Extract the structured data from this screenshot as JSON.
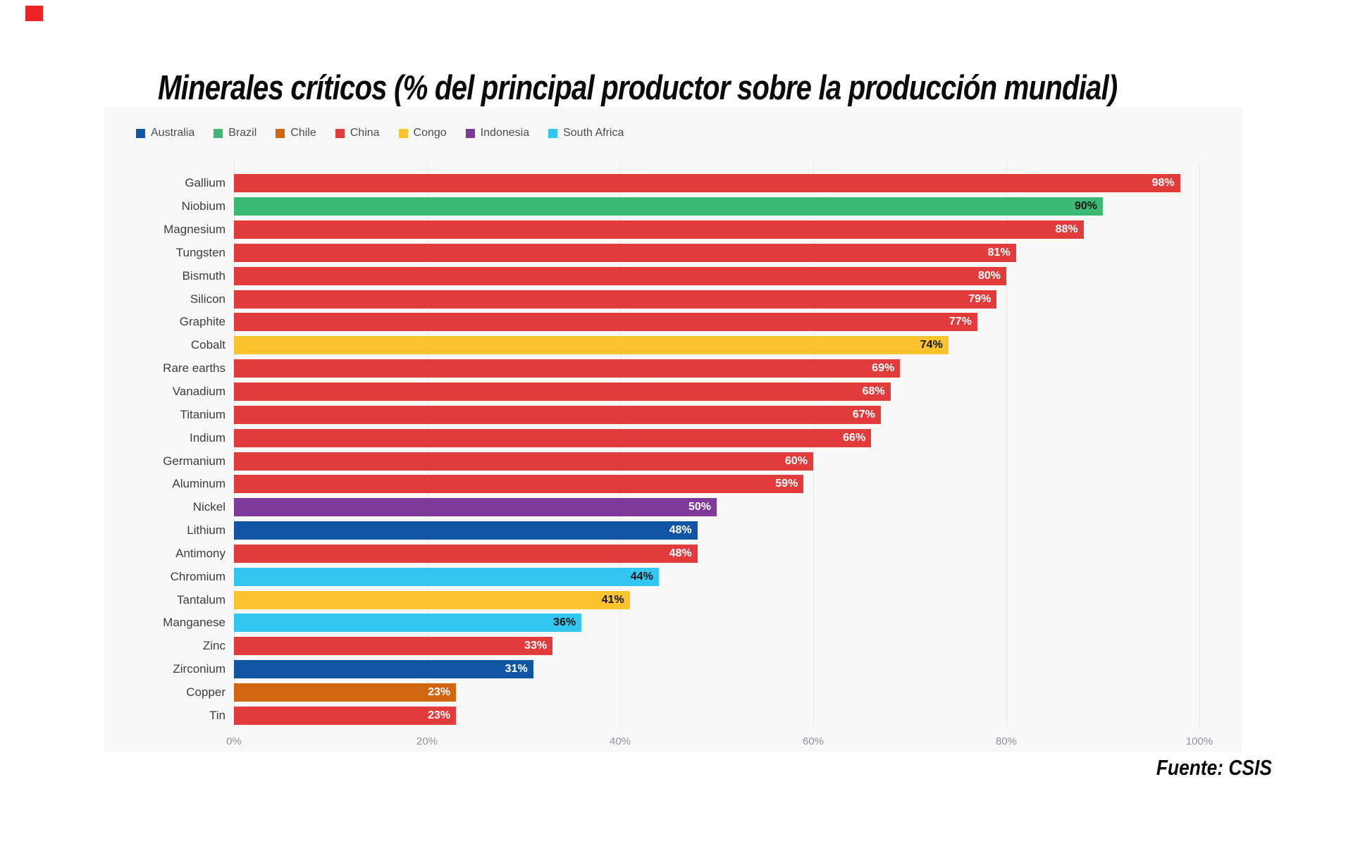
{
  "decoration": {
    "corner_square_color": "#ec2227"
  },
  "title": "Minerales críticos (% del principal productor sobre la producción mundial)",
  "source": "Fuente: CSIS",
  "chart_data": {
    "type": "bar",
    "orientation": "horizontal",
    "title": "Minerales críticos (% del principal productor sobre la producción mundial)",
    "legend_position": "top",
    "grid": true,
    "x_axis": {
      "min": 0,
      "max": 100,
      "ticks": [
        "0%",
        "20%",
        "40%",
        "60%",
        "80%",
        "100%"
      ],
      "tick_values": [
        0,
        20,
        40,
        60,
        80,
        100
      ]
    },
    "countries": [
      {
        "name": "Australia",
        "color": "#1156a5"
      },
      {
        "name": "Brazil",
        "color": "#3cba73"
      },
      {
        "name": "Chile",
        "color": "#d2650f"
      },
      {
        "name": "China",
        "color": "#e23b3c"
      },
      {
        "name": "Congo",
        "color": "#fbc32d"
      },
      {
        "name": "Indonesia",
        "color": "#7d3a9b"
      },
      {
        "name": "South Africa",
        "color": "#33c6f0"
      }
    ],
    "bars": [
      {
        "mineral": "Gallium",
        "producer": "China",
        "value": 98,
        "label": "98%",
        "label_color": "#ffffff"
      },
      {
        "mineral": "Niobium",
        "producer": "Brazil",
        "value": 90,
        "label": "90%",
        "label_color": "#161616"
      },
      {
        "mineral": "Magnesium",
        "producer": "China",
        "value": 88,
        "label": "88%",
        "label_color": "#ffffff"
      },
      {
        "mineral": "Tungsten",
        "producer": "China",
        "value": 81,
        "label": "81%",
        "label_color": "#ffffff"
      },
      {
        "mineral": "Bismuth",
        "producer": "China",
        "value": 80,
        "label": "80%",
        "label_color": "#ffffff"
      },
      {
        "mineral": "Silicon",
        "producer": "China",
        "value": 79,
        "label": "79%",
        "label_color": "#ffffff"
      },
      {
        "mineral": "Graphite",
        "producer": "China",
        "value": 77,
        "label": "77%",
        "label_color": "#ffffff"
      },
      {
        "mineral": "Cobalt",
        "producer": "Congo",
        "value": 74,
        "label": "74%",
        "label_color": "#161616"
      },
      {
        "mineral": "Rare earths",
        "producer": "China",
        "value": 69,
        "label": "69%",
        "label_color": "#ffffff"
      },
      {
        "mineral": "Vanadium",
        "producer": "China",
        "value": 68,
        "label": "68%",
        "label_color": "#ffffff"
      },
      {
        "mineral": "Titanium",
        "producer": "China",
        "value": 67,
        "label": "67%",
        "label_color": "#ffffff"
      },
      {
        "mineral": "Indium",
        "producer": "China",
        "value": 66,
        "label": "66%",
        "label_color": "#ffffff"
      },
      {
        "mineral": "Germanium",
        "producer": "China",
        "value": 60,
        "label": "60%",
        "label_color": "#ffffff"
      },
      {
        "mineral": "Aluminum",
        "producer": "China",
        "value": 59,
        "label": "59%",
        "label_color": "#ffffff"
      },
      {
        "mineral": "Nickel",
        "producer": "Indonesia",
        "value": 50,
        "label": "50%",
        "label_color": "#ffffff"
      },
      {
        "mineral": "Lithium",
        "producer": "Australia",
        "value": 48,
        "label": "48%",
        "label_color": "#ffffff"
      },
      {
        "mineral": "Antimony",
        "producer": "China",
        "value": 48,
        "label": "48%",
        "label_color": "#ffffff"
      },
      {
        "mineral": "Chromium",
        "producer": "South Africa",
        "value": 44,
        "label": "44%",
        "label_color": "#161616"
      },
      {
        "mineral": "Tantalum",
        "producer": "Congo",
        "value": 41,
        "label": "41%",
        "label_color": "#161616"
      },
      {
        "mineral": "Manganese",
        "producer": "South Africa",
        "value": 36,
        "label": "36%",
        "label_color": "#161616"
      },
      {
        "mineral": "Zinc",
        "producer": "China",
        "value": 33,
        "label": "33%",
        "label_color": "#ffffff"
      },
      {
        "mineral": "Zirconium",
        "producer": "Australia",
        "value": 31,
        "label": "31%",
        "label_color": "#ffffff"
      },
      {
        "mineral": "Copper",
        "producer": "Chile",
        "value": 23,
        "label": "23%",
        "label_color": "#ffffff"
      },
      {
        "mineral": "Tin",
        "producer": "China",
        "value": 23,
        "label": "23%",
        "label_color": "#ffffff"
      }
    ],
    "source": "Fuente: CSIS",
    "panel_background": "#f8f8f9"
  }
}
